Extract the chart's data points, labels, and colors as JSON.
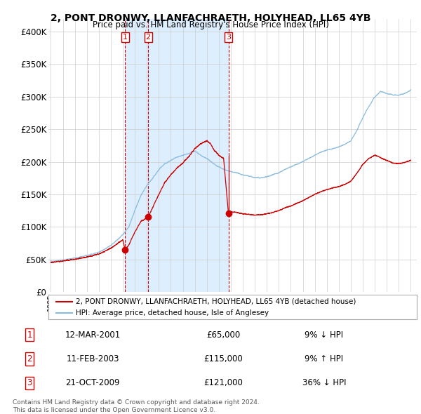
{
  "title": "2, PONT DRONWY, LLANFACHRAETH, HOLYHEAD, LL65 4YB",
  "subtitle": "Price paid vs. HM Land Registry's House Price Index (HPI)",
  "ylim": [
    0,
    420000
  ],
  "yticks": [
    0,
    50000,
    100000,
    150000,
    200000,
    250000,
    300000,
    350000,
    400000
  ],
  "ytick_labels": [
    "£0",
    "£50K",
    "£100K",
    "£150K",
    "£200K",
    "£250K",
    "£300K",
    "£350K",
    "£400K"
  ],
  "xlim_start": 1994.8,
  "xlim_end": 2025.5,
  "xticks": [
    1995,
    1996,
    1997,
    1998,
    1999,
    2000,
    2001,
    2002,
    2003,
    2004,
    2005,
    2006,
    2007,
    2008,
    2009,
    2010,
    2011,
    2012,
    2013,
    2014,
    2015,
    2016,
    2017,
    2018,
    2019,
    2020,
    2021,
    2022,
    2023,
    2024,
    2025
  ],
  "sale_color": "#cc0000",
  "hpi_color": "#88bbdd",
  "shade_color": "#ddeeff",
  "vline_color": "#cc0000",
  "background_color": "#ffffff",
  "grid_color": "#cccccc",
  "transactions": [
    {
      "num": 1,
      "x": 2001.19,
      "price": 65000
    },
    {
      "num": 2,
      "x": 2003.11,
      "price": 115000
    },
    {
      "num": 3,
      "x": 2009.8,
      "price": 121000
    }
  ],
  "footer_line1": "Contains HM Land Registry data © Crown copyright and database right 2024.",
  "footer_line2": "This data is licensed under the Open Government Licence v3.0.",
  "legend_line1": "2, PONT DRONWY, LLANFACHRAETH, HOLYHEAD, LL65 4YB (detached house)",
  "legend_line2": "HPI: Average price, detached house, Isle of Anglesey",
  "table_rows": [
    {
      "num": 1,
      "date": "12-MAR-2001",
      "price": "£65,000",
      "pct": "9% ↓ HPI"
    },
    {
      "num": 2,
      "date": "11-FEB-2003",
      "price": "£115,000",
      "pct": "9% ↑ HPI"
    },
    {
      "num": 3,
      "date": "21-OCT-2009",
      "price": "£121,000",
      "pct": "36% ↓ HPI"
    }
  ]
}
